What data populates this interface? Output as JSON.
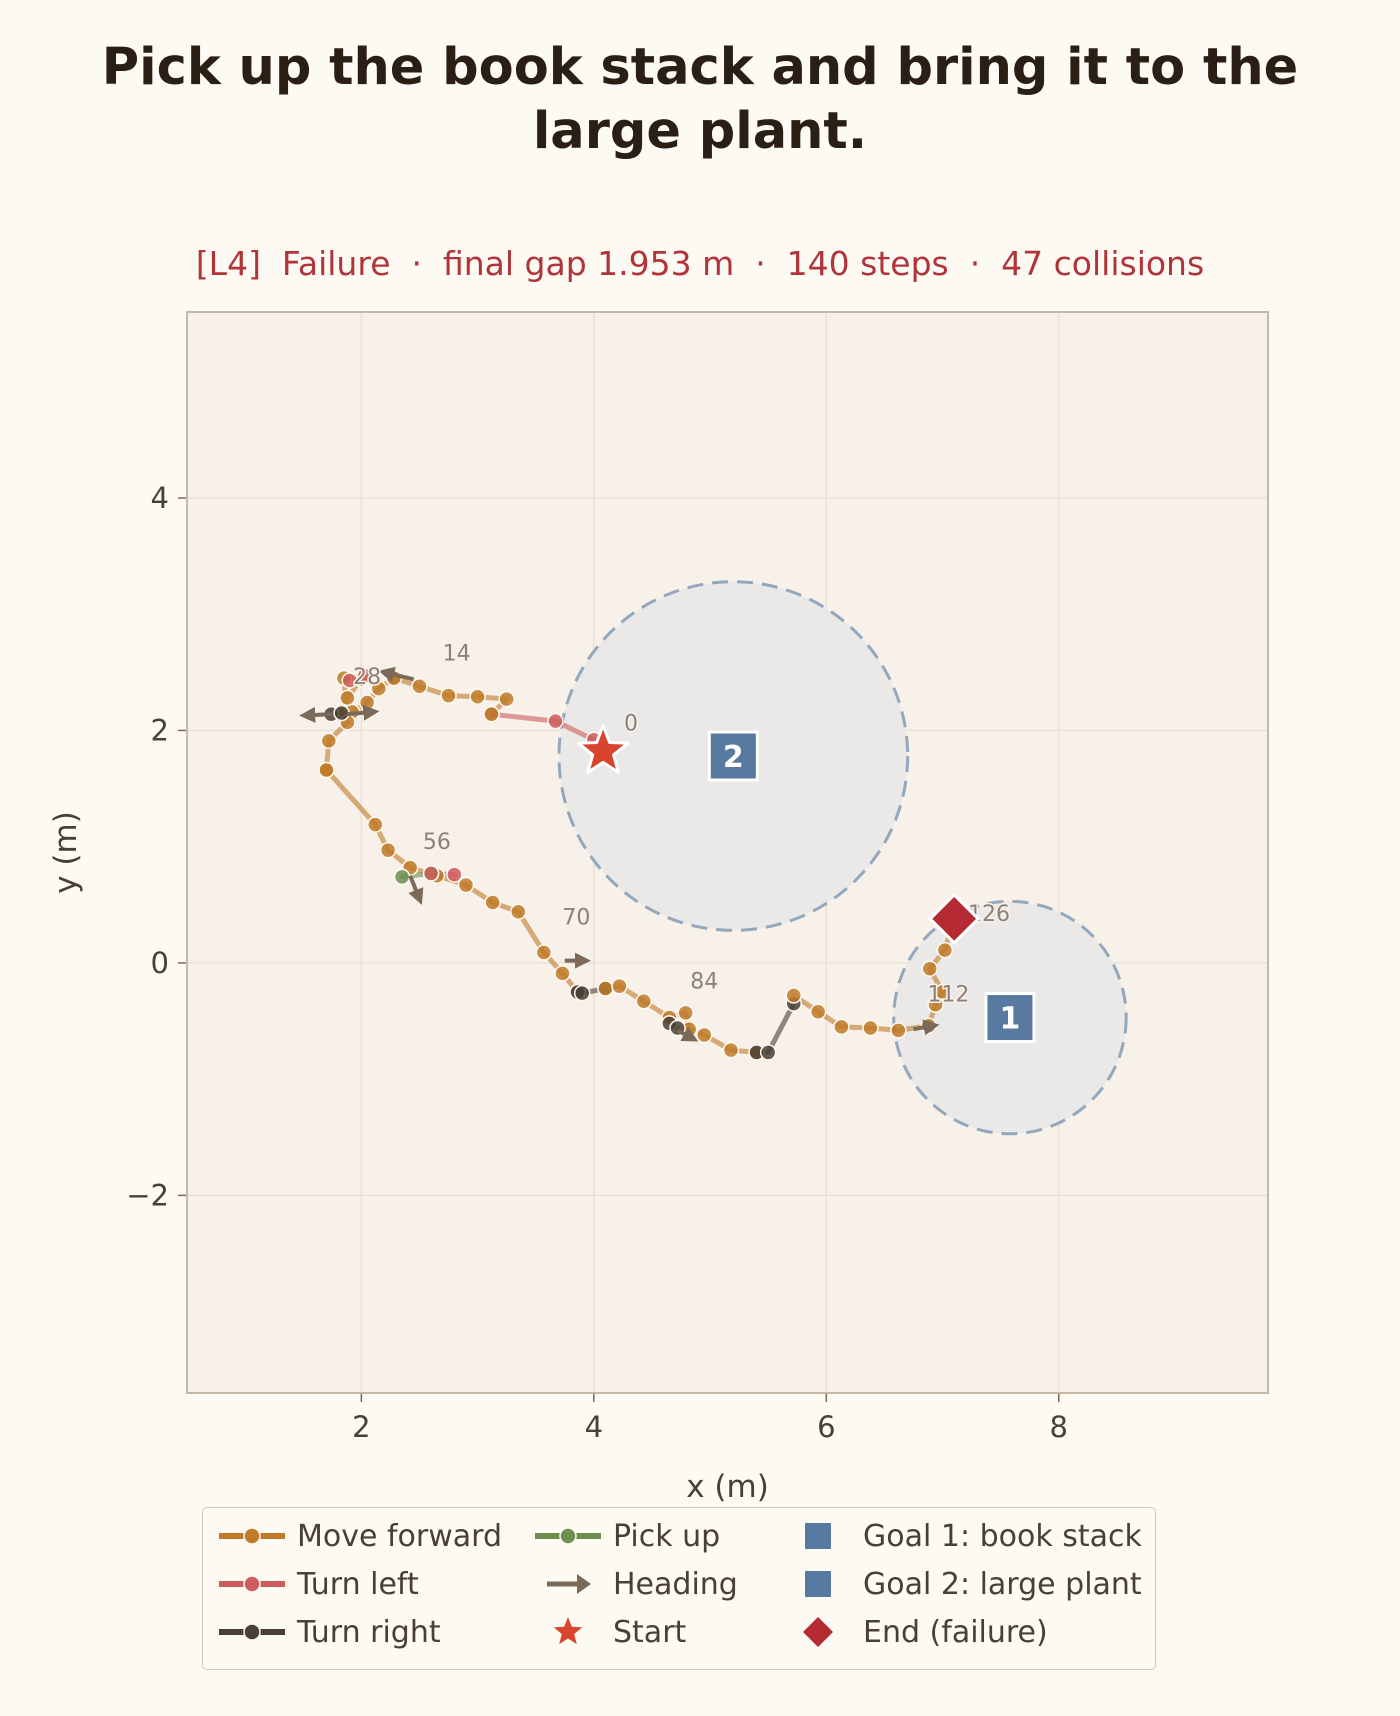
{
  "title_lines": [
    "Pick up the book stack and bring it to the",
    "large plant."
  ],
  "subtitle": "[L4]  Failure  ·  final gap 1.953 m  ·  140 steps  ·  47 collisions",
  "colors": {
    "move_forward": "#c07a28",
    "turn_left": "#cd5c5c",
    "turn_right": "#4a3f35",
    "pick_up": "#6b8f4e",
    "heading": "#7a6a5a",
    "start": "#d9442e",
    "goal": "#587aa0",
    "end": "#b52a33",
    "plot_bg": "#f7f1e9",
    "zone_fill": "#e8e8e8",
    "zone_edge": "#93a7bd"
  },
  "chart_data": {
    "type": "scatter",
    "xlabel": "x (m)",
    "ylabel": "y (m)",
    "xlim": [
      0.5,
      9.8
    ],
    "ylim": [
      -3.7,
      5.6
    ],
    "xticks": [
      2,
      4,
      6,
      8
    ],
    "yticks": [
      -2,
      0,
      2,
      4
    ],
    "grid": true,
    "goals": [
      {
        "label": "1",
        "x": 7.58,
        "y": -0.47,
        "radius": 1.0
      },
      {
        "label": "2",
        "x": 5.2,
        "y": 1.78,
        "radius": 1.5
      }
    ],
    "start": {
      "x": 4.08,
      "y": 1.82
    },
    "end": {
      "x": 7.1,
      "y": 0.38
    },
    "step_labels": [
      {
        "text": "0",
        "x": 4.32,
        "y": 2.0
      },
      {
        "text": "14",
        "x": 2.82,
        "y": 2.6
      },
      {
        "text": "28",
        "x": 2.05,
        "y": 2.4
      },
      {
        "text": "56",
        "x": 2.65,
        "y": 0.98
      },
      {
        "text": "70",
        "x": 3.85,
        "y": 0.33
      },
      {
        "text": "84",
        "x": 4.95,
        "y": -0.22
      },
      {
        "text": "112",
        "x": 7.05,
        "y": -0.33
      },
      {
        "text": "126",
        "x": 7.4,
        "y": 0.36
      }
    ],
    "segments": [
      {
        "action": "turn_left",
        "points": [
          [
            4.0,
            1.92
          ],
          [
            3.67,
            2.08
          ],
          [
            3.12,
            2.14
          ]
        ]
      },
      {
        "action": "move_forward",
        "points": [
          [
            3.12,
            2.14
          ],
          [
            3.25,
            2.27
          ],
          [
            3.0,
            2.29
          ],
          [
            2.75,
            2.3
          ],
          [
            2.5,
            2.38
          ],
          [
            2.28,
            2.45
          ]
        ]
      },
      {
        "action": "move_forward",
        "points": [
          [
            2.28,
            2.45
          ],
          [
            2.15,
            2.36
          ],
          [
            2.05,
            2.24
          ],
          [
            1.92,
            2.16
          ],
          [
            1.82,
            2.14
          ],
          [
            1.88,
            2.28
          ],
          [
            2.0,
            2.44
          ],
          [
            1.85,
            2.45
          ],
          [
            1.88,
            2.07
          ],
          [
            1.72,
            1.91
          ],
          [
            1.7,
            1.66
          ]
        ]
      },
      {
        "action": "turn_left",
        "points": [
          [
            1.9,
            2.43
          ],
          [
            2.03,
            2.47
          ]
        ]
      },
      {
        "action": "turn_right",
        "points": [
          [
            1.74,
            2.14
          ],
          [
            1.83,
            2.15
          ]
        ]
      },
      {
        "action": "move_forward",
        "points": [
          [
            1.7,
            1.66
          ],
          [
            2.12,
            1.19
          ],
          [
            2.23,
            0.97
          ],
          [
            2.42,
            0.82
          ],
          [
            2.65,
            0.75
          ],
          [
            2.9,
            0.67
          ],
          [
            3.13,
            0.52
          ],
          [
            3.35,
            0.44
          ],
          [
            3.57,
            0.09
          ],
          [
            3.73,
            -0.09
          ],
          [
            3.86,
            -0.25
          ]
        ]
      },
      {
        "action": "pick_up",
        "points": [
          [
            2.35,
            0.74
          ],
          [
            2.6,
            0.77
          ]
        ]
      },
      {
        "action": "turn_left",
        "points": [
          [
            2.6,
            0.77
          ],
          [
            2.8,
            0.76
          ]
        ]
      },
      {
        "action": "turn_right",
        "points": [
          [
            3.86,
            -0.25
          ],
          [
            3.9,
            -0.26
          ],
          [
            4.1,
            -0.22
          ]
        ]
      },
      {
        "action": "move_forward",
        "points": [
          [
            4.1,
            -0.22
          ],
          [
            4.22,
            -0.2
          ],
          [
            4.43,
            -0.33
          ],
          [
            4.65,
            -0.47
          ],
          [
            4.79,
            -0.43
          ],
          [
            4.82,
            -0.57
          ],
          [
            4.95,
            -0.62
          ],
          [
            5.18,
            -0.75
          ],
          [
            5.4,
            -0.77
          ]
        ]
      },
      {
        "action": "turn_right",
        "points": [
          [
            4.65,
            -0.52
          ],
          [
            4.72,
            -0.56
          ]
        ]
      },
      {
        "action": "turn_right",
        "points": [
          [
            5.4,
            -0.77
          ],
          [
            5.5,
            -0.77
          ],
          [
            5.72,
            -0.35
          ]
        ]
      },
      {
        "action": "move_forward",
        "points": [
          [
            5.72,
            -0.28
          ],
          [
            5.93,
            -0.42
          ],
          [
            6.13,
            -0.55
          ],
          [
            6.38,
            -0.56
          ],
          [
            6.62,
            -0.58
          ],
          [
            6.88,
            -0.54
          ],
          [
            6.94,
            -0.36
          ],
          [
            7.0,
            -0.25
          ],
          [
            6.89,
            -0.05
          ],
          [
            7.02,
            0.11
          ],
          [
            7.1,
            0.38
          ]
        ]
      }
    ],
    "heading_arrows": [
      {
        "x1": 4.0,
        "y1": 1.92,
        "x2": 4.0,
        "y2": 1.92,
        "dx": 0.0,
        "dy": 0.0
      },
      {
        "x1": 2.45,
        "y1": 2.44,
        "x2": 2.2,
        "y2": 2.5
      },
      {
        "x1": 1.75,
        "y1": 2.14,
        "x2": 1.52,
        "y2": 2.13
      },
      {
        "x1": 1.88,
        "y1": 2.14,
        "x2": 2.1,
        "y2": 2.16
      },
      {
        "x1": 2.42,
        "y1": 0.75,
        "x2": 2.5,
        "y2": 0.55
      },
      {
        "x1": 3.75,
        "y1": 0.02,
        "x2": 3.92,
        "y2": 0.02
      },
      {
        "x1": 4.72,
        "y1": -0.58,
        "x2": 4.85,
        "y2": -0.65
      },
      {
        "x1": 6.75,
        "y1": -0.57,
        "x2": 6.92,
        "y2": -0.54
      }
    ],
    "legend": [
      {
        "label": "Move forward",
        "kind": "line",
        "color_key": "move_forward"
      },
      {
        "label": "Turn left",
        "kind": "line",
        "color_key": "turn_left"
      },
      {
        "label": "Turn right",
        "kind": "line",
        "color_key": "turn_right"
      },
      {
        "label": "Pick up",
        "kind": "line",
        "color_key": "pick_up"
      },
      {
        "label": "Heading",
        "kind": "arrow",
        "color_key": "heading"
      },
      {
        "label": "Start",
        "kind": "star",
        "color_key": "start"
      },
      {
        "label": "Goal 1: book stack",
        "kind": "square",
        "color_key": "goal"
      },
      {
        "label": "Goal 2: large plant",
        "kind": "square",
        "color_key": "goal"
      },
      {
        "label": "End (failure)",
        "kind": "diamond",
        "color_key": "end"
      }
    ]
  }
}
